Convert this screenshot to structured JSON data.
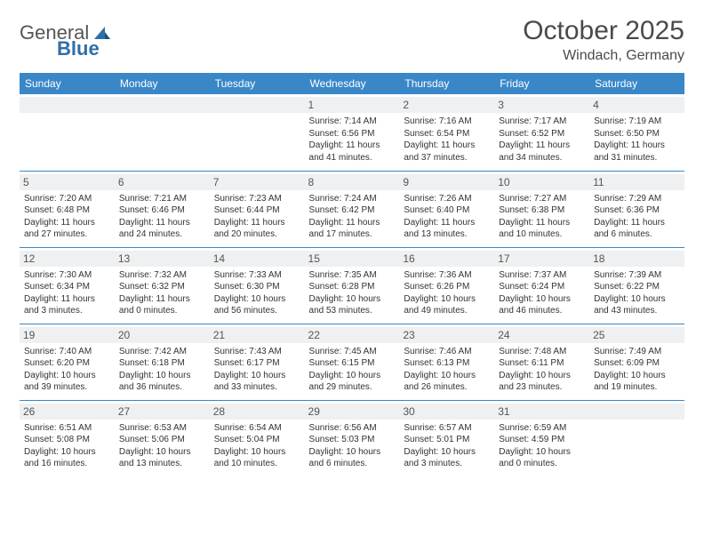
{
  "logo": {
    "text1": "General",
    "text2": "Blue"
  },
  "title": "October 2025",
  "location": "Windach, Germany",
  "weekdays": [
    "Sunday",
    "Monday",
    "Tuesday",
    "Wednesday",
    "Thursday",
    "Friday",
    "Saturday"
  ],
  "colors": {
    "header_bg": "#3a87c8",
    "header_fg": "#ffffff",
    "daybar_bg": "#eef0f2",
    "rule": "#3a87c8",
    "text": "#333333",
    "title": "#4a4a4a"
  },
  "weeks": [
    [
      null,
      null,
      null,
      {
        "n": "1",
        "sunrise": "Sunrise: 7:14 AM",
        "sunset": "Sunset: 6:56 PM",
        "day1": "Daylight: 11 hours",
        "day2": "and 41 minutes."
      },
      {
        "n": "2",
        "sunrise": "Sunrise: 7:16 AM",
        "sunset": "Sunset: 6:54 PM",
        "day1": "Daylight: 11 hours",
        "day2": "and 37 minutes."
      },
      {
        "n": "3",
        "sunrise": "Sunrise: 7:17 AM",
        "sunset": "Sunset: 6:52 PM",
        "day1": "Daylight: 11 hours",
        "day2": "and 34 minutes."
      },
      {
        "n": "4",
        "sunrise": "Sunrise: 7:19 AM",
        "sunset": "Sunset: 6:50 PM",
        "day1": "Daylight: 11 hours",
        "day2": "and 31 minutes."
      }
    ],
    [
      {
        "n": "5",
        "sunrise": "Sunrise: 7:20 AM",
        "sunset": "Sunset: 6:48 PM",
        "day1": "Daylight: 11 hours",
        "day2": "and 27 minutes."
      },
      {
        "n": "6",
        "sunrise": "Sunrise: 7:21 AM",
        "sunset": "Sunset: 6:46 PM",
        "day1": "Daylight: 11 hours",
        "day2": "and 24 minutes."
      },
      {
        "n": "7",
        "sunrise": "Sunrise: 7:23 AM",
        "sunset": "Sunset: 6:44 PM",
        "day1": "Daylight: 11 hours",
        "day2": "and 20 minutes."
      },
      {
        "n": "8",
        "sunrise": "Sunrise: 7:24 AM",
        "sunset": "Sunset: 6:42 PM",
        "day1": "Daylight: 11 hours",
        "day2": "and 17 minutes."
      },
      {
        "n": "9",
        "sunrise": "Sunrise: 7:26 AM",
        "sunset": "Sunset: 6:40 PM",
        "day1": "Daylight: 11 hours",
        "day2": "and 13 minutes."
      },
      {
        "n": "10",
        "sunrise": "Sunrise: 7:27 AM",
        "sunset": "Sunset: 6:38 PM",
        "day1": "Daylight: 11 hours",
        "day2": "and 10 minutes."
      },
      {
        "n": "11",
        "sunrise": "Sunrise: 7:29 AM",
        "sunset": "Sunset: 6:36 PM",
        "day1": "Daylight: 11 hours",
        "day2": "and 6 minutes."
      }
    ],
    [
      {
        "n": "12",
        "sunrise": "Sunrise: 7:30 AM",
        "sunset": "Sunset: 6:34 PM",
        "day1": "Daylight: 11 hours",
        "day2": "and 3 minutes."
      },
      {
        "n": "13",
        "sunrise": "Sunrise: 7:32 AM",
        "sunset": "Sunset: 6:32 PM",
        "day1": "Daylight: 11 hours",
        "day2": "and 0 minutes."
      },
      {
        "n": "14",
        "sunrise": "Sunrise: 7:33 AM",
        "sunset": "Sunset: 6:30 PM",
        "day1": "Daylight: 10 hours",
        "day2": "and 56 minutes."
      },
      {
        "n": "15",
        "sunrise": "Sunrise: 7:35 AM",
        "sunset": "Sunset: 6:28 PM",
        "day1": "Daylight: 10 hours",
        "day2": "and 53 minutes."
      },
      {
        "n": "16",
        "sunrise": "Sunrise: 7:36 AM",
        "sunset": "Sunset: 6:26 PM",
        "day1": "Daylight: 10 hours",
        "day2": "and 49 minutes."
      },
      {
        "n": "17",
        "sunrise": "Sunrise: 7:37 AM",
        "sunset": "Sunset: 6:24 PM",
        "day1": "Daylight: 10 hours",
        "day2": "and 46 minutes."
      },
      {
        "n": "18",
        "sunrise": "Sunrise: 7:39 AM",
        "sunset": "Sunset: 6:22 PM",
        "day1": "Daylight: 10 hours",
        "day2": "and 43 minutes."
      }
    ],
    [
      {
        "n": "19",
        "sunrise": "Sunrise: 7:40 AM",
        "sunset": "Sunset: 6:20 PM",
        "day1": "Daylight: 10 hours",
        "day2": "and 39 minutes."
      },
      {
        "n": "20",
        "sunrise": "Sunrise: 7:42 AM",
        "sunset": "Sunset: 6:18 PM",
        "day1": "Daylight: 10 hours",
        "day2": "and 36 minutes."
      },
      {
        "n": "21",
        "sunrise": "Sunrise: 7:43 AM",
        "sunset": "Sunset: 6:17 PM",
        "day1": "Daylight: 10 hours",
        "day2": "and 33 minutes."
      },
      {
        "n": "22",
        "sunrise": "Sunrise: 7:45 AM",
        "sunset": "Sunset: 6:15 PM",
        "day1": "Daylight: 10 hours",
        "day2": "and 29 minutes."
      },
      {
        "n": "23",
        "sunrise": "Sunrise: 7:46 AM",
        "sunset": "Sunset: 6:13 PM",
        "day1": "Daylight: 10 hours",
        "day2": "and 26 minutes."
      },
      {
        "n": "24",
        "sunrise": "Sunrise: 7:48 AM",
        "sunset": "Sunset: 6:11 PM",
        "day1": "Daylight: 10 hours",
        "day2": "and 23 minutes."
      },
      {
        "n": "25",
        "sunrise": "Sunrise: 7:49 AM",
        "sunset": "Sunset: 6:09 PM",
        "day1": "Daylight: 10 hours",
        "day2": "and 19 minutes."
      }
    ],
    [
      {
        "n": "26",
        "sunrise": "Sunrise: 6:51 AM",
        "sunset": "Sunset: 5:08 PM",
        "day1": "Daylight: 10 hours",
        "day2": "and 16 minutes."
      },
      {
        "n": "27",
        "sunrise": "Sunrise: 6:53 AM",
        "sunset": "Sunset: 5:06 PM",
        "day1": "Daylight: 10 hours",
        "day2": "and 13 minutes."
      },
      {
        "n": "28",
        "sunrise": "Sunrise: 6:54 AM",
        "sunset": "Sunset: 5:04 PM",
        "day1": "Daylight: 10 hours",
        "day2": "and 10 minutes."
      },
      {
        "n": "29",
        "sunrise": "Sunrise: 6:56 AM",
        "sunset": "Sunset: 5:03 PM",
        "day1": "Daylight: 10 hours",
        "day2": "and 6 minutes."
      },
      {
        "n": "30",
        "sunrise": "Sunrise: 6:57 AM",
        "sunset": "Sunset: 5:01 PM",
        "day1": "Daylight: 10 hours",
        "day2": "and 3 minutes."
      },
      {
        "n": "31",
        "sunrise": "Sunrise: 6:59 AM",
        "sunset": "Sunset: 4:59 PM",
        "day1": "Daylight: 10 hours",
        "day2": "and 0 minutes."
      },
      null
    ]
  ]
}
